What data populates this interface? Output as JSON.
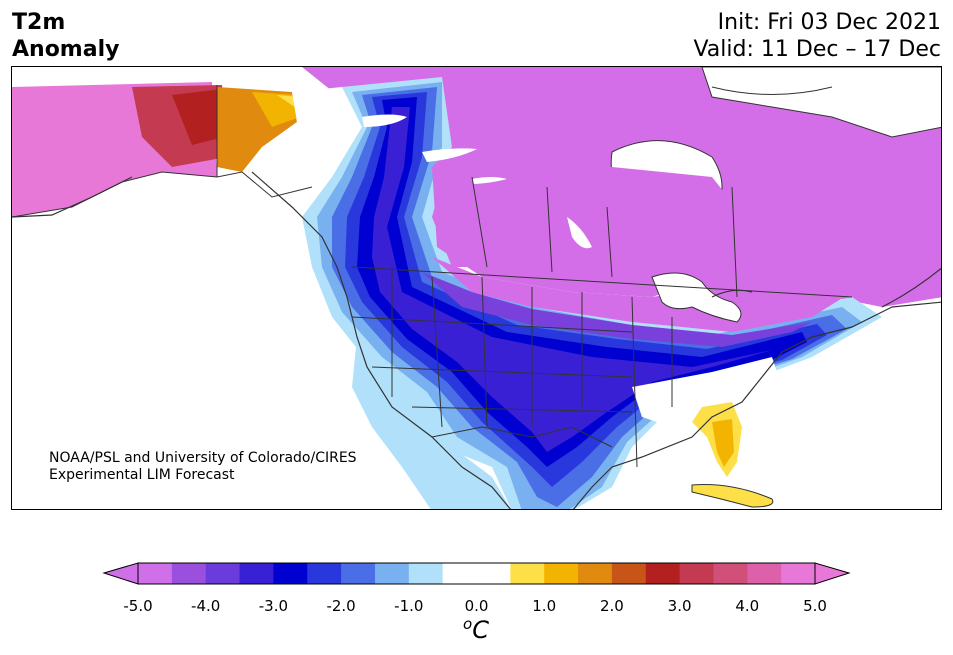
{
  "header": {
    "title_line1": "T2m",
    "title_line2": "Anomaly",
    "init_line": "Init: Fri 03 Dec 2021",
    "valid_line": "Valid: 11 Dec – 17 Dec"
  },
  "credit": {
    "line1": "NOAA/PSL and University of Colorado/CIRES",
    "line2": "Experimental LIM Forecast"
  },
  "colorbar": {
    "unit_base": "C",
    "unit_sup": "o",
    "ticks": [
      "-5.0",
      "-4.0",
      "-3.0",
      "-2.0",
      "-1.0",
      "0.0",
      "1.0",
      "2.0",
      "3.0",
      "4.0",
      "5.0"
    ],
    "colors": [
      "#d070e8",
      "#9a50dc",
      "#6a3cdc",
      "#3a20d4",
      "#0000d0",
      "#2838dc",
      "#4a6ee6",
      "#78b0f0",
      "#b0e0fa",
      "#ffffff",
      "#ffffff",
      "#fde048",
      "#f2b400",
      "#e08a10",
      "#c85418",
      "#b22020",
      "#c43a50",
      "#d0507a",
      "#dc60aa",
      "#e878d8"
    ],
    "over_color": "#e878d8",
    "under_color": "#d070e8"
  },
  "map": {
    "colors": {
      "land_neutral": "#ffffff",
      "magenta": "#d46ee8",
      "purple": "#7a40dc",
      "indigo": "#3a20d4",
      "blue": "#0000d0",
      "mid_blue": "#4a6ee6",
      "light_blue": "#78b0f0",
      "pale_blue": "#b0e0fa",
      "yellow": "#fde048",
      "orange": "#f2b400",
      "dark_orange": "#e08a10",
      "red": "#b22020",
      "pink": "#d0507a",
      "pink_light": "#e878d8",
      "border": "#333333"
    }
  }
}
